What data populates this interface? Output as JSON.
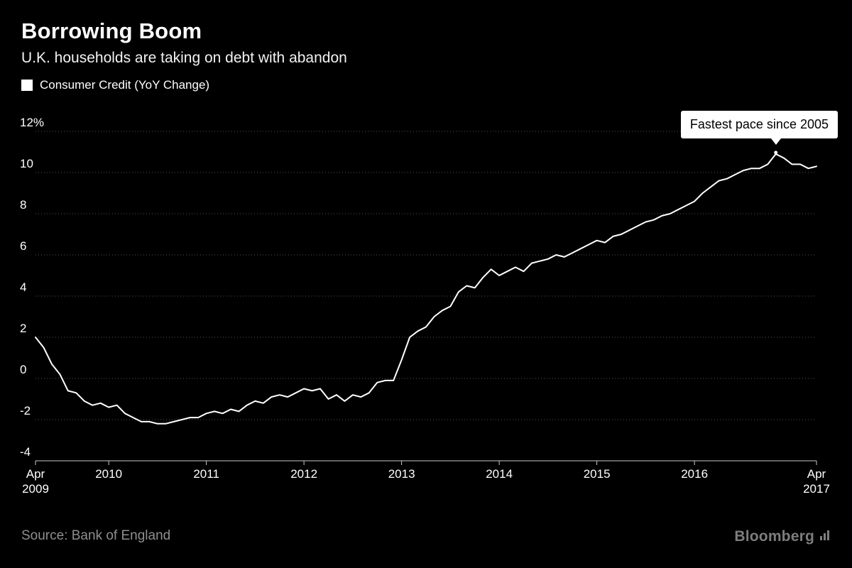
{
  "chart_data": {
    "type": "line",
    "title": "Borrowing Boom",
    "subtitle": "U.K. households are taking on debt with abandon",
    "legend": [
      "Consumer Credit (YoY Change)"
    ],
    "x_start": "Apr 2009",
    "x_end": "Apr 2017",
    "ylim": [
      -4,
      12
    ],
    "grid": "horizontal-dotted",
    "y_ticks": [
      -4,
      -2,
      0,
      2,
      4,
      6,
      8,
      10,
      12
    ],
    "y_tick_labels": [
      "-4",
      "-2",
      "0",
      "2",
      "4",
      "6",
      "8",
      "10",
      "12%"
    ],
    "x_ticks": [
      {
        "lines": [
          "Apr",
          "2009"
        ],
        "index": 0
      },
      {
        "lines": [
          "2010"
        ],
        "index": 9
      },
      {
        "lines": [
          "2011"
        ],
        "index": 21
      },
      {
        "lines": [
          "2012"
        ],
        "index": 33
      },
      {
        "lines": [
          "2013"
        ],
        "index": 45
      },
      {
        "lines": [
          "2014"
        ],
        "index": 57
      },
      {
        "lines": [
          "2015"
        ],
        "index": 69
      },
      {
        "lines": [
          "2016"
        ],
        "index": 81
      },
      {
        "lines": [
          "Apr",
          "2017"
        ],
        "index": 96
      }
    ],
    "series": [
      {
        "name": "Consumer Credit (YoY Change)",
        "color": "#ffffff",
        "values": [
          2.0,
          1.5,
          0.7,
          0.2,
          -0.6,
          -0.7,
          -1.1,
          -1.3,
          -1.2,
          -1.4,
          -1.3,
          -1.7,
          -1.9,
          -2.1,
          -2.1,
          -2.2,
          -2.2,
          -2.1,
          -2.0,
          -1.9,
          -1.9,
          -1.7,
          -1.6,
          -1.7,
          -1.5,
          -1.6,
          -1.3,
          -1.1,
          -1.2,
          -0.9,
          -0.8,
          -0.9,
          -0.7,
          -0.5,
          -0.6,
          -0.5,
          -1.0,
          -0.8,
          -1.1,
          -0.8,
          -0.9,
          -0.7,
          -0.2,
          -0.1,
          -0.1,
          0.9,
          2.0,
          2.3,
          2.5,
          3.0,
          3.3,
          3.5,
          4.2,
          4.5,
          4.4,
          4.9,
          5.3,
          5.0,
          5.2,
          5.4,
          5.2,
          5.6,
          5.7,
          5.8,
          6.0,
          5.9,
          6.1,
          6.3,
          6.5,
          6.7,
          6.6,
          6.9,
          7.0,
          7.2,
          7.4,
          7.6,
          7.7,
          7.9,
          8.0,
          8.2,
          8.4,
          8.6,
          9.0,
          9.3,
          9.6,
          9.7,
          9.9,
          10.1,
          10.2,
          10.2,
          10.4,
          10.9,
          10.7,
          10.4,
          10.4,
          10.2,
          10.3
        ]
      }
    ],
    "annotation": {
      "text": "Fastest pace since 2005",
      "x_index": 91,
      "y": 10.9
    },
    "source": "Source: Bank of England"
  },
  "branding": {
    "logo_text": "Bloomberg"
  },
  "colors": {
    "background": "#000000",
    "line": "#ffffff",
    "grid": "#555555",
    "axis": "#c8c8c8",
    "muted_text": "#8f8f8f"
  }
}
